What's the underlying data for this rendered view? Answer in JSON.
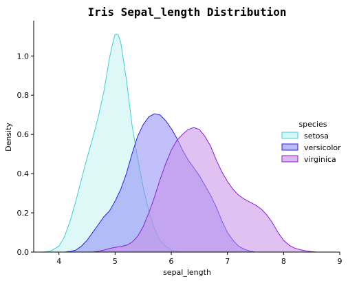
{
  "chart_data": {
    "type": "area",
    "title": "Iris Sepal_length Distribution",
    "xlabel": "sepal_length",
    "ylabel": "Density",
    "xlim": [
      3.55,
      9.0
    ],
    "ylim": [
      0.0,
      1.18
    ],
    "xticks": [
      4,
      5,
      6,
      7,
      8,
      9
    ],
    "yticks": [
      0.0,
      0.2,
      0.4,
      0.6,
      0.8,
      1.0
    ],
    "xtick_labels": [
      "4",
      "5",
      "6",
      "7",
      "8",
      "9"
    ],
    "ytick_labels": [
      "0.0",
      "0.2",
      "0.4",
      "0.6",
      "0.8",
      "1.0"
    ],
    "grid": false,
    "legend": {
      "title": "species",
      "position": "center-right"
    },
    "series": [
      {
        "name": "setosa",
        "fill": "#c3f0f1",
        "stroke": "#3ccfd6",
        "points": [
          [
            3.7,
            0.0
          ],
          [
            3.85,
            0.005
          ],
          [
            4.0,
            0.03
          ],
          [
            4.1,
            0.08
          ],
          [
            4.2,
            0.16
          ],
          [
            4.3,
            0.26
          ],
          [
            4.4,
            0.37
          ],
          [
            4.5,
            0.48
          ],
          [
            4.6,
            0.58
          ],
          [
            4.7,
            0.69
          ],
          [
            4.8,
            0.82
          ],
          [
            4.9,
            0.99
          ],
          [
            4.97,
            1.08
          ],
          [
            5.0,
            1.11
          ],
          [
            5.05,
            1.11
          ],
          [
            5.1,
            1.07
          ],
          [
            5.2,
            0.88
          ],
          [
            5.3,
            0.65
          ],
          [
            5.4,
            0.48
          ],
          [
            5.5,
            0.33
          ],
          [
            5.6,
            0.21
          ],
          [
            5.7,
            0.12
          ],
          [
            5.8,
            0.06
          ],
          [
            5.9,
            0.03
          ],
          [
            6.0,
            0.01
          ],
          [
            6.1,
            0.003
          ],
          [
            6.2,
            0.0
          ]
        ]
      },
      {
        "name": "versicolor",
        "fill": "#8e8cf7",
        "stroke": "#2a1ee6",
        "points": [
          [
            4.1,
            0.0
          ],
          [
            4.2,
            0.003
          ],
          [
            4.3,
            0.01
          ],
          [
            4.4,
            0.03
          ],
          [
            4.5,
            0.06
          ],
          [
            4.6,
            0.1
          ],
          [
            4.7,
            0.14
          ],
          [
            4.8,
            0.18
          ],
          [
            4.9,
            0.21
          ],
          [
            5.0,
            0.26
          ],
          [
            5.1,
            0.32
          ],
          [
            5.2,
            0.4
          ],
          [
            5.3,
            0.5
          ],
          [
            5.4,
            0.59
          ],
          [
            5.5,
            0.65
          ],
          [
            5.6,
            0.69
          ],
          [
            5.7,
            0.705
          ],
          [
            5.8,
            0.7
          ],
          [
            5.9,
            0.67
          ],
          [
            6.0,
            0.63
          ],
          [
            6.1,
            0.58
          ],
          [
            6.2,
            0.52
          ],
          [
            6.3,
            0.47
          ],
          [
            6.4,
            0.43
          ],
          [
            6.5,
            0.39
          ],
          [
            6.6,
            0.34
          ],
          [
            6.7,
            0.29
          ],
          [
            6.8,
            0.23
          ],
          [
            6.9,
            0.16
          ],
          [
            7.0,
            0.1
          ],
          [
            7.1,
            0.06
          ],
          [
            7.2,
            0.03
          ],
          [
            7.3,
            0.015
          ],
          [
            7.4,
            0.005
          ],
          [
            7.5,
            0.0
          ]
        ]
      },
      {
        "name": "virginica",
        "fill": "#c78ee7",
        "stroke": "#8a1fd0",
        "points": [
          [
            4.6,
            0.0
          ],
          [
            4.7,
            0.004
          ],
          [
            4.8,
            0.01
          ],
          [
            4.9,
            0.018
          ],
          [
            5.0,
            0.024
          ],
          [
            5.1,
            0.028
          ],
          [
            5.2,
            0.035
          ],
          [
            5.3,
            0.05
          ],
          [
            5.4,
            0.08
          ],
          [
            5.5,
            0.13
          ],
          [
            5.6,
            0.2
          ],
          [
            5.7,
            0.28
          ],
          [
            5.8,
            0.37
          ],
          [
            5.9,
            0.45
          ],
          [
            6.0,
            0.52
          ],
          [
            6.1,
            0.57
          ],
          [
            6.2,
            0.6
          ],
          [
            6.3,
            0.625
          ],
          [
            6.4,
            0.635
          ],
          [
            6.5,
            0.625
          ],
          [
            6.6,
            0.59
          ],
          [
            6.7,
            0.54
          ],
          [
            6.8,
            0.47
          ],
          [
            6.9,
            0.41
          ],
          [
            7.0,
            0.36
          ],
          [
            7.1,
            0.32
          ],
          [
            7.2,
            0.29
          ],
          [
            7.3,
            0.27
          ],
          [
            7.4,
            0.255
          ],
          [
            7.5,
            0.24
          ],
          [
            7.6,
            0.22
          ],
          [
            7.7,
            0.19
          ],
          [
            7.8,
            0.15
          ],
          [
            7.9,
            0.1
          ],
          [
            8.0,
            0.06
          ],
          [
            8.1,
            0.035
          ],
          [
            8.2,
            0.02
          ],
          [
            8.3,
            0.012
          ],
          [
            8.4,
            0.006
          ],
          [
            8.5,
            0.002
          ],
          [
            8.6,
            0.0
          ]
        ]
      }
    ]
  }
}
